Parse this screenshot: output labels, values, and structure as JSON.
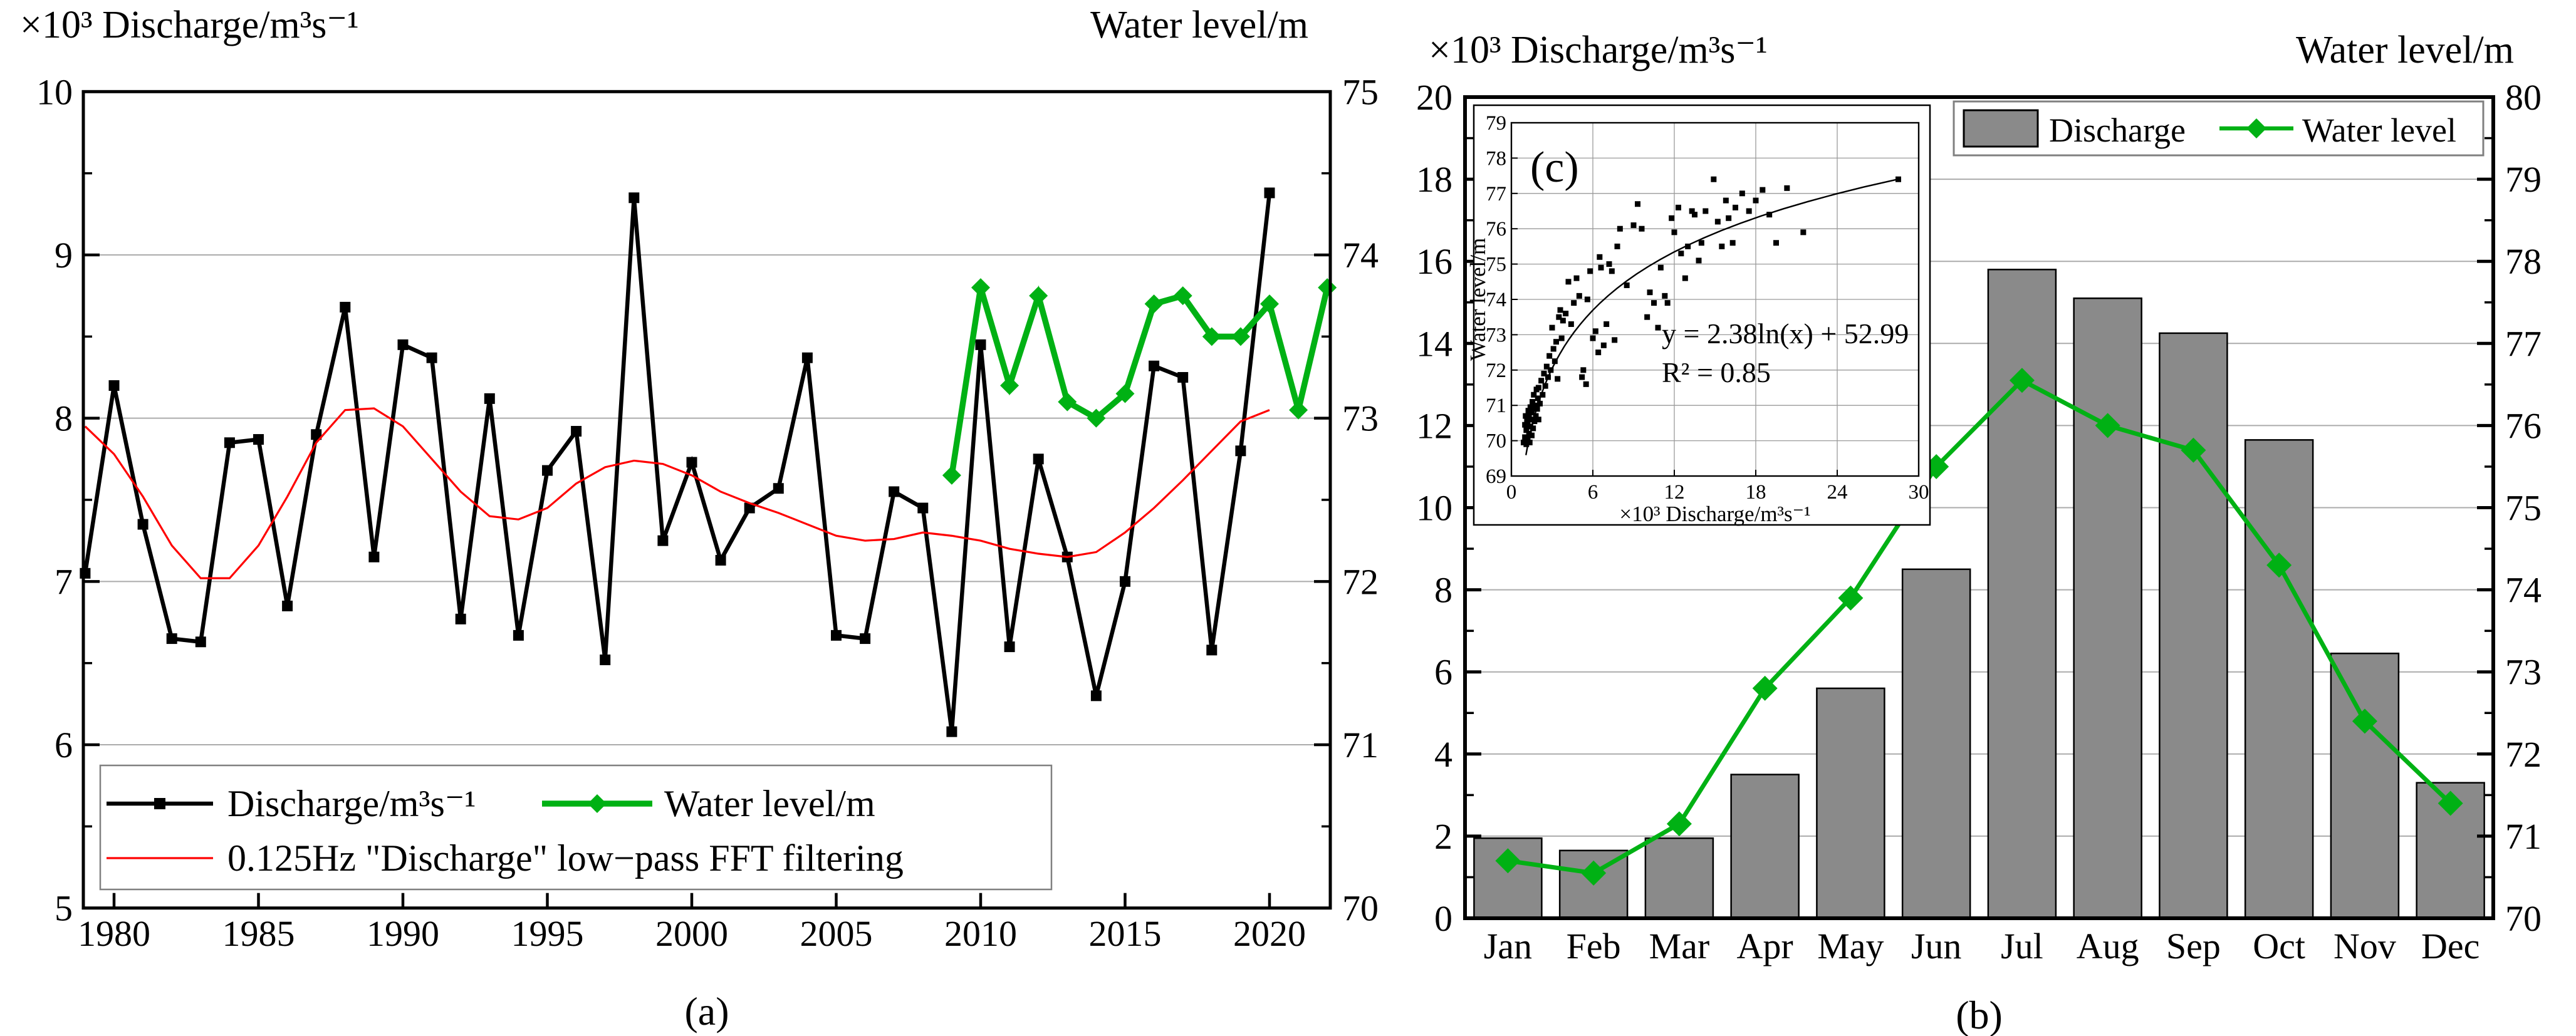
{
  "figure": {
    "panel_a_label": "(a)",
    "panel_b_label": "(b)",
    "panel_c_label": "(c)"
  },
  "colors": {
    "black": "#000000",
    "red": "#ff0000",
    "green": "#00b114",
    "bar_gray": "#8a8a8a",
    "grid_gray": "#ababab",
    "legend_border": "#808080"
  },
  "chart_data": [
    {
      "id": "panel-a",
      "type": "line",
      "title_left": "×10³ Discharge/m³s⁻¹",
      "title_right": "Water level/m",
      "x_ticks": [
        1980,
        1985,
        1990,
        1995,
        2000,
        2005,
        2010,
        2015,
        2020
      ],
      "xlim": [
        1978.9,
        2022.1
      ],
      "ylim_left": [
        5,
        10
      ],
      "yticks_left": [
        5,
        6,
        7,
        8,
        9,
        10
      ],
      "ylim_right": [
        70,
        75
      ],
      "yticks_right": [
        70,
        71,
        72,
        73,
        74,
        75
      ],
      "grid_values_left": [
        6,
        7,
        8,
        9
      ],
      "series": [
        {
          "name": "Discharge/m³s⁻¹",
          "axis": "left",
          "color": "#000000",
          "marker": "square",
          "x_start": 1979,
          "values": [
            7.05,
            8.2,
            7.35,
            6.65,
            6.63,
            7.85,
            7.87,
            6.85,
            7.9,
            8.68,
            7.15,
            8.45,
            8.37,
            6.77,
            8.12,
            6.67,
            7.68,
            7.92,
            6.52,
            9.35,
            7.25,
            7.73,
            7.13,
            7.45,
            7.57,
            8.37,
            6.67,
            6.65,
            7.55,
            7.45,
            6.08,
            8.45,
            6.6,
            7.75,
            7.15,
            6.3,
            7.0,
            8.32,
            8.25,
            6.58,
            7.8,
            9.38
          ]
        },
        {
          "name": "Water level/m",
          "axis": "right",
          "color": "#00b114",
          "marker": "diamond",
          "x_start": 2009,
          "values": [
            72.65,
            73.8,
            73.2,
            73.75,
            73.1,
            73.0,
            73.15,
            73.7,
            73.75,
            73.5,
            73.5,
            73.7,
            73.05,
            73.8
          ]
        },
        {
          "name": "0.125Hz \"Discharge\" low−pass FFT filtering",
          "axis": "left",
          "color": "#ff0000",
          "marker": "none",
          "x_start": 1979,
          "values": [
            7.95,
            7.78,
            7.52,
            7.22,
            7.02,
            7.02,
            7.22,
            7.52,
            7.85,
            8.05,
            8.06,
            7.95,
            7.75,
            7.55,
            7.4,
            7.38,
            7.45,
            7.6,
            7.7,
            7.74,
            7.72,
            7.65,
            7.55,
            7.48,
            7.42,
            7.35,
            7.28,
            7.25,
            7.26,
            7.3,
            7.28,
            7.25,
            7.2,
            7.17,
            7.15,
            7.18,
            7.3,
            7.45,
            7.62,
            7.8,
            7.98,
            8.05
          ]
        }
      ]
    },
    {
      "id": "panel-b",
      "type": "bar",
      "title_left": "×10³ Discharge/m³s⁻¹",
      "title_right": "Water level/m",
      "categories": [
        "Jan",
        "Feb",
        "Mar",
        "Apr",
        "May",
        "Jun",
        "Jul",
        "Aug",
        "Sep",
        "Oct",
        "Nov",
        "Dec"
      ],
      "ylim_left": [
        0,
        20
      ],
      "yticks_left": [
        0,
        2,
        4,
        6,
        8,
        10,
        12,
        14,
        16,
        18,
        20
      ],
      "ylim_right": [
        70,
        80
      ],
      "yticks_right": [
        70,
        71,
        72,
        73,
        74,
        75,
        76,
        77,
        78,
        79,
        80
      ],
      "grid_values_right": [
        71,
        72,
        73,
        74,
        75,
        76,
        77,
        78,
        79
      ],
      "series": [
        {
          "name": "Discharge",
          "type": "bar",
          "axis": "left",
          "color": "#8a8a8a",
          "values": [
            1.95,
            1.65,
            1.95,
            3.5,
            5.6,
            8.5,
            15.8,
            15.1,
            14.25,
            11.65,
            6.45,
            3.3
          ]
        },
        {
          "name": "Water level",
          "type": "line",
          "axis": "right",
          "color": "#00b114",
          "marker": "diamond",
          "values": [
            70.7,
            70.55,
            71.15,
            72.8,
            73.9,
            75.5,
            76.55,
            76.0,
            75.7,
            74.3,
            72.4,
            71.4
          ]
        }
      ]
    },
    {
      "id": "panel-c",
      "type": "scatter",
      "xlabel": "×10³ Discharge/m³s⁻¹",
      "ylabel": "Water level/m",
      "xlim": [
        0,
        30
      ],
      "ylim": [
        69,
        79
      ],
      "x_ticks": [
        0,
        6,
        12,
        18,
        24,
        30
      ],
      "y_ticks": [
        69,
        70,
        71,
        72,
        73,
        74,
        75,
        76,
        77,
        78,
        79
      ],
      "grid_x": [
        6,
        12,
        18,
        24
      ],
      "grid_y": [
        70,
        71,
        72,
        73,
        74,
        75,
        76,
        77,
        78
      ],
      "fit_equation": "y = 2.38ln(x) + 52.99",
      "fit_r2": "R² = 0.85",
      "fit_coeffs": {
        "a": 2.38,
        "b": 52.99
      },
      "points": [
        [
          0.9,
          69.95
        ],
        [
          1.0,
          70.1
        ],
        [
          1.0,
          70.45
        ],
        [
          1.05,
          70.7
        ],
        [
          1.1,
          69.9
        ],
        [
          1.1,
          70.3
        ],
        [
          1.15,
          70.6
        ],
        [
          1.2,
          70.05
        ],
        [
          1.2,
          70.5
        ],
        [
          1.25,
          70.85
        ],
        [
          1.3,
          70.2
        ],
        [
          1.3,
          70.7
        ],
        [
          1.35,
          69.95
        ],
        [
          1.4,
          70.4
        ],
        [
          1.4,
          70.95
        ],
        [
          1.45,
          70.6
        ],
        [
          1.5,
          70.15
        ],
        [
          1.5,
          70.8
        ],
        [
          1.55,
          71.1
        ],
        [
          1.6,
          70.35
        ],
        [
          1.6,
          70.9
        ],
        [
          1.65,
          71.3
        ],
        [
          1.7,
          70.55
        ],
        [
          1.75,
          71.0
        ],
        [
          1.8,
          70.7
        ],
        [
          1.85,
          71.45
        ],
        [
          1.9,
          70.9
        ],
        [
          1.95,
          71.2
        ],
        [
          2.0,
          70.6
        ],
        [
          2.0,
          71.5
        ],
        [
          2.1,
          71.05
        ],
        [
          2.2,
          71.7
        ],
        [
          2.3,
          71.3
        ],
        [
          2.4,
          71.9
        ],
        [
          2.5,
          71.55
        ],
        [
          2.6,
          72.1
        ],
        [
          2.7,
          71.8
        ],
        [
          2.8,
          72.4
        ],
        [
          2.9,
          72.0
        ],
        [
          3.0,
          73.2
        ],
        [
          3.1,
          72.6
        ],
        [
          3.2,
          72.25
        ],
        [
          3.3,
          72.8
        ],
        [
          3.4,
          71.75
        ],
        [
          3.5,
          73.5
        ],
        [
          3.6,
          73.7
        ],
        [
          3.7,
          72.9
        ],
        [
          3.8,
          73.4
        ],
        [
          4.0,
          73.6
        ],
        [
          4.2,
          74.5
        ],
        [
          4.4,
          73.3
        ],
        [
          4.6,
          73.9
        ],
        [
          4.8,
          74.6
        ],
        [
          5.0,
          74.1
        ],
        [
          5.2,
          71.8
        ],
        [
          5.3,
          72.0
        ],
        [
          5.5,
          71.6
        ],
        [
          5.6,
          74.0
        ],
        [
          5.8,
          74.8
        ],
        [
          6.0,
          72.9
        ],
        [
          6.2,
          73.1
        ],
        [
          6.4,
          72.5
        ],
        [
          6.5,
          75.2
        ],
        [
          6.6,
          74.9
        ],
        [
          6.8,
          72.7
        ],
        [
          7.0,
          73.3
        ],
        [
          7.2,
          75.0
        ],
        [
          7.4,
          74.8
        ],
        [
          7.6,
          72.85
        ],
        [
          7.8,
          75.5
        ],
        [
          8.0,
          76.0
        ],
        [
          8.5,
          74.4
        ],
        [
          9.0,
          76.1
        ],
        [
          9.3,
          76.7
        ],
        [
          9.6,
          76.0
        ],
        [
          10.0,
          73.5
        ],
        [
          10.2,
          74.2
        ],
        [
          10.5,
          73.9
        ],
        [
          10.8,
          73.2
        ],
        [
          11.0,
          74.9
        ],
        [
          11.3,
          74.1
        ],
        [
          11.5,
          73.9
        ],
        [
          11.8,
          76.3
        ],
        [
          12.0,
          75.9
        ],
        [
          12.3,
          76.6
        ],
        [
          12.5,
          75.3
        ],
        [
          12.8,
          74.6
        ],
        [
          13.0,
          75.5
        ],
        [
          13.3,
          76.5
        ],
        [
          13.5,
          76.4
        ],
        [
          13.8,
          75.1
        ],
        [
          14.0,
          75.6
        ],
        [
          14.3,
          76.5
        ],
        [
          14.9,
          77.4
        ],
        [
          15.2,
          76.2
        ],
        [
          15.5,
          75.5
        ],
        [
          15.8,
          76.8
        ],
        [
          16.0,
          76.3
        ],
        [
          16.3,
          75.6
        ],
        [
          16.5,
          76.6
        ],
        [
          17.0,
          77.0
        ],
        [
          17.5,
          76.5
        ],
        [
          18.0,
          76.8
        ],
        [
          18.5,
          77.1
        ],
        [
          19.0,
          76.4
        ],
        [
          19.5,
          75.6
        ],
        [
          20.3,
          77.15
        ],
        [
          21.5,
          75.9
        ],
        [
          28.5,
          77.4
        ]
      ]
    }
  ]
}
